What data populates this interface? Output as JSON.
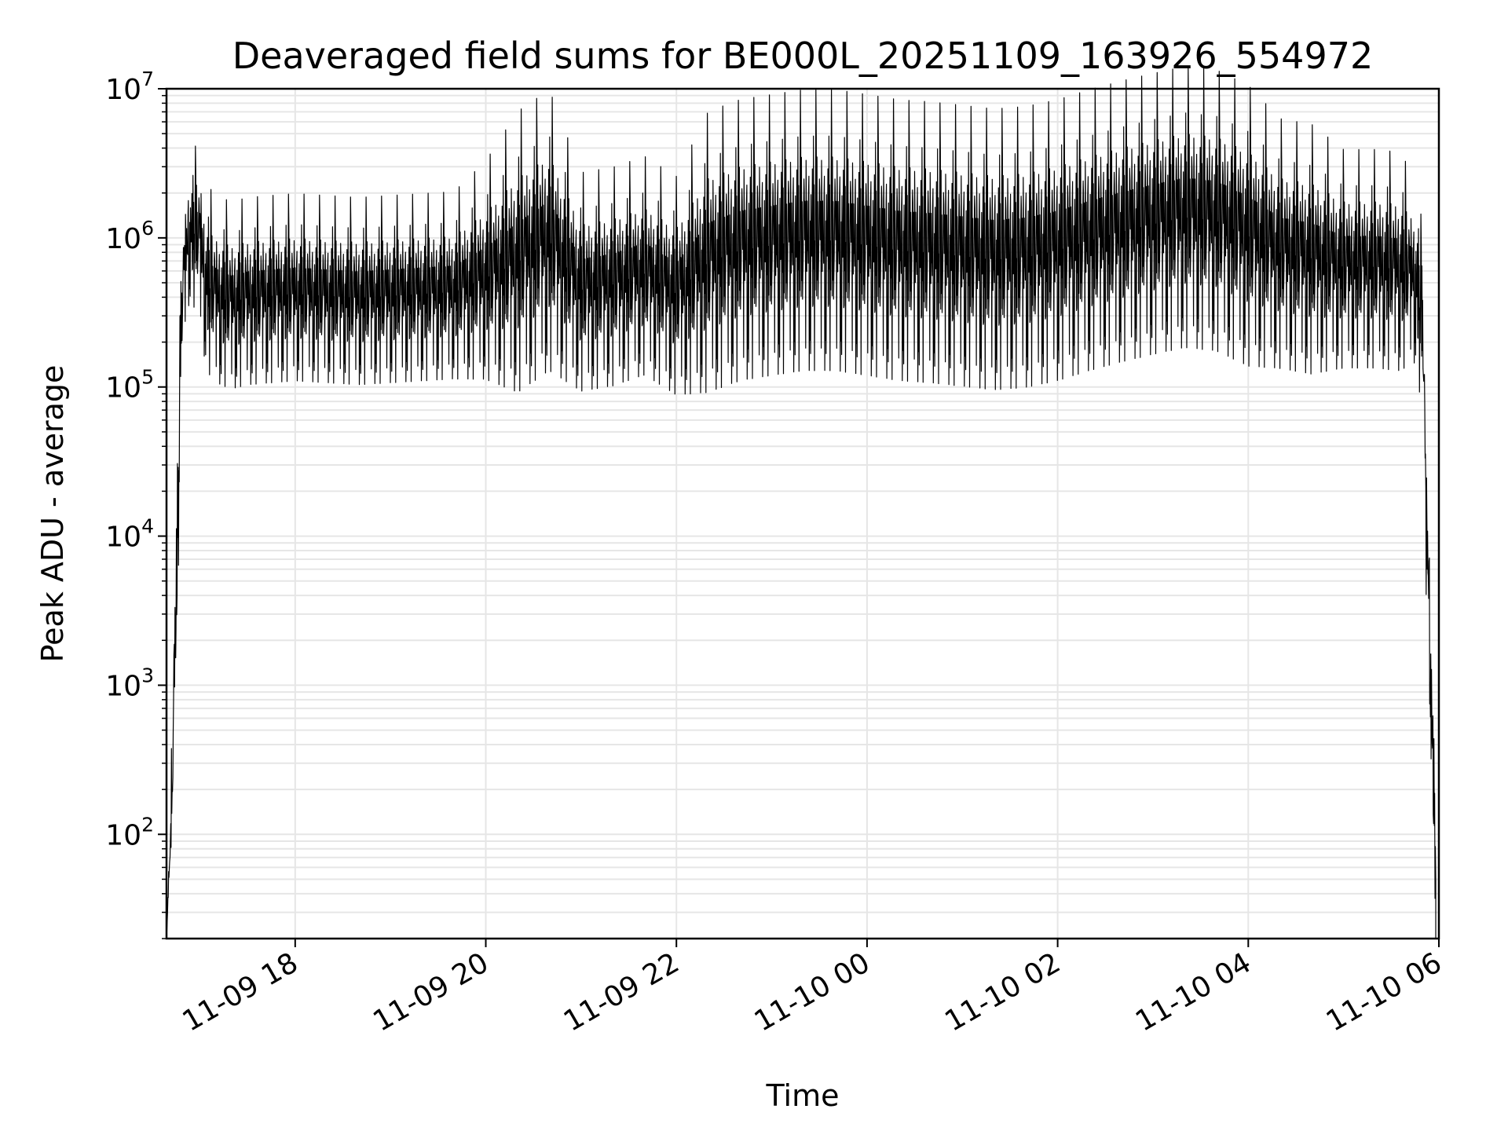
{
  "chart_data": {
    "type": "line",
    "title": "Deaveraged field sums for BE000L_20251109_163926_554972",
    "xlabel": "Time",
    "ylabel": "Peak ADU - average",
    "yscale": "log",
    "ylim": [
      20,
      10000000
    ],
    "xlim": [
      "2025-11-09 16:39",
      "2025-11-10 06:00"
    ],
    "grid": true,
    "line_color": "#000000",
    "grid_color": "#e6e6e6",
    "x_ticks": [
      {
        "label": "11-09 18",
        "t": "2025-11-09 18:00"
      },
      {
        "label": "11-09 20",
        "t": "2025-11-09 20:00"
      },
      {
        "label": "11-09 22",
        "t": "2025-11-09 22:00"
      },
      {
        "label": "11-10 00",
        "t": "2025-11-10 00:00"
      },
      {
        "label": "11-10 02",
        "t": "2025-11-10 02:00"
      },
      {
        "label": "11-10 04",
        "t": "2025-11-10 04:00"
      },
      {
        "label": "11-10 06",
        "t": "2025-11-10 06:00"
      }
    ],
    "y_ticks": [
      {
        "base": "10",
        "exp": "2",
        "value": 100
      },
      {
        "base": "10",
        "exp": "3",
        "value": 1000
      },
      {
        "base": "10",
        "exp": "4",
        "value": 10000
      },
      {
        "base": "10",
        "exp": "5",
        "value": 100000
      },
      {
        "base": "10",
        "exp": "6",
        "value": 1000000
      },
      {
        "base": "10",
        "exp": "7",
        "value": 10000000
      }
    ],
    "series": [
      {
        "time": [
          "2025-11-09 16:39",
          "2025-11-09 16:43",
          "2025-11-09 16:45",
          "2025-11-09 16:47",
          "2025-11-09 16:48",
          "2025-11-09 16:50",
          "2025-11-09 16:53",
          "2025-11-09 16:56",
          "2025-11-09 17:00",
          "2025-11-09 17:04",
          "2025-11-09 17:08",
          "2025-11-09 17:13",
          "2025-11-09 17:20",
          "2025-11-09 17:30",
          "2025-11-09 17:45",
          "2025-11-09 18:00",
          "2025-11-09 18:20",
          "2025-11-09 18:40",
          "2025-11-09 19:00",
          "2025-11-09 19:20",
          "2025-11-09 19:40",
          "2025-11-09 20:00",
          "2025-11-09 20:20",
          "2025-11-09 20:40",
          "2025-11-09 21:00",
          "2025-11-09 21:20",
          "2025-11-09 21:40",
          "2025-11-09 22:00",
          "2025-11-09 22:20",
          "2025-11-09 22:40",
          "2025-11-09 23:00",
          "2025-11-09 23:20",
          "2025-11-09 23:40",
          "2025-11-10 00:00",
          "2025-11-10 00:20",
          "2025-11-10 00:40",
          "2025-11-10 01:00",
          "2025-11-10 01:20",
          "2025-11-10 01:40",
          "2025-11-10 02:00",
          "2025-11-10 02:20",
          "2025-11-10 02:40",
          "2025-11-10 03:00",
          "2025-11-10 03:20",
          "2025-11-10 03:40",
          "2025-11-10 04:00",
          "2025-11-10 04:20",
          "2025-11-10 04:40",
          "2025-11-10 05:00",
          "2025-11-10 05:20",
          "2025-11-10 05:35",
          "2025-11-10 05:45",
          "2025-11-10 05:50",
          "2025-11-10 05:52",
          "2025-11-10 05:54",
          "2025-11-10 05:56",
          "2025-11-10 05:58"
        ],
        "center": [
          20,
          200,
          3000,
          30000,
          200000,
          500000,
          900000,
          900000,
          800000,
          400000,
          350000,
          320000,
          300000,
          320000,
          330000,
          340000,
          330000,
          320000,
          330000,
          340000,
          350000,
          420000,
          500000,
          700000,
          350000,
          380000,
          450000,
          330000,
          500000,
          600000,
          650000,
          700000,
          700000,
          650000,
          600000,
          580000,
          550000,
          520000,
          540000,
          600000,
          700000,
          800000,
          900000,
          1000000,
          950000,
          750000,
          600000,
          550000,
          500000,
          500000,
          480000,
          450000,
          200000,
          10000,
          3000,
          300,
          60
        ],
        "spread": [
          0,
          0.35,
          0.35,
          0.25,
          0.25,
          0.25,
          0.25,
          0.25,
          0.3,
          0.3,
          0.3,
          0.3,
          0.3,
          0.3,
          0.3,
          0.3,
          0.3,
          0.3,
          0.3,
          0.3,
          0.3,
          0.35,
          0.45,
          0.45,
          0.35,
          0.35,
          0.35,
          0.35,
          0.45,
          0.45,
          0.45,
          0.45,
          0.45,
          0.45,
          0.45,
          0.45,
          0.45,
          0.45,
          0.45,
          0.45,
          0.45,
          0.45,
          0.45,
          0.45,
          0.45,
          0.45,
          0.4,
          0.4,
          0.35,
          0.35,
          0.35,
          0.3,
          0.3,
          0.3,
          0.3,
          0.3,
          0.2
        ]
      }
    ]
  }
}
